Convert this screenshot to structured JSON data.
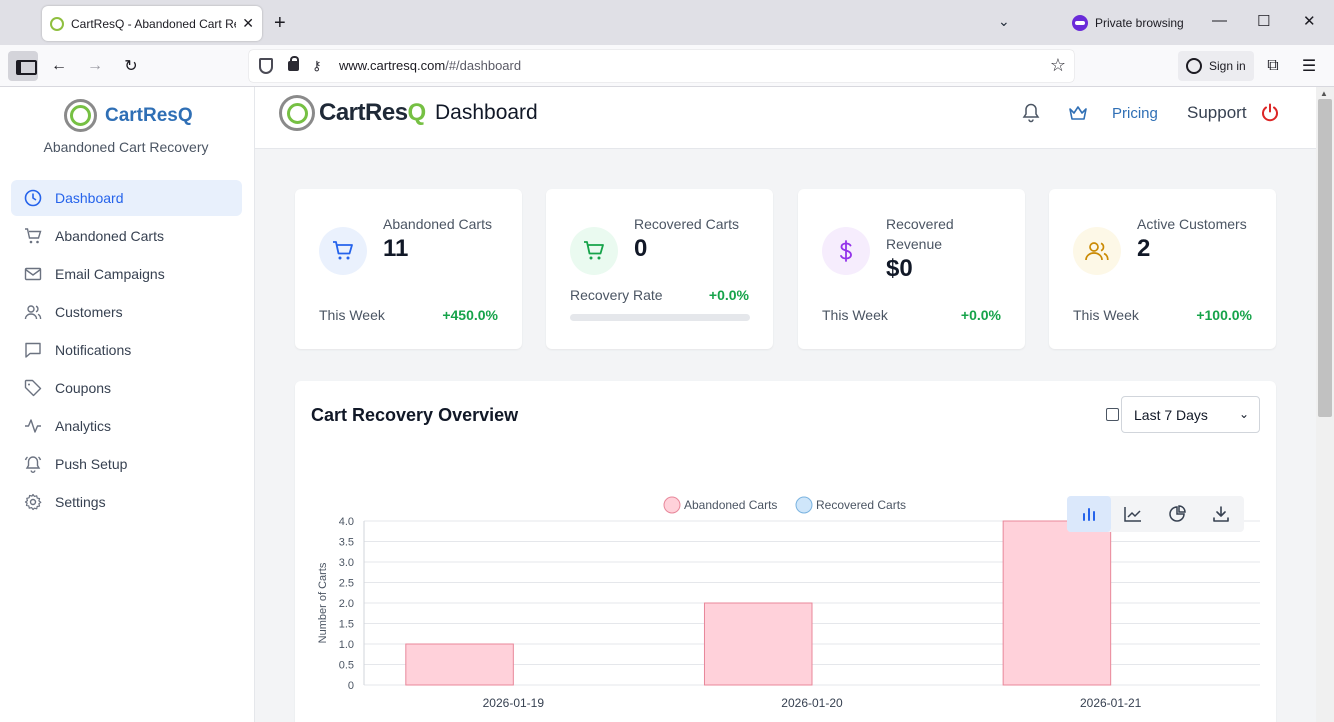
{
  "browser": {
    "tab_title": "CartResQ - Abandoned Cart Rec",
    "new_tab": "+",
    "private_label": "Private browsing",
    "url_host": "www.cartresq.com",
    "url_path": "/#/dashboard",
    "sign_in": "Sign in"
  },
  "sidebar": {
    "brand": "CartResQ",
    "subtitle": "Abandoned Cart Recovery",
    "items": [
      {
        "label": "Dashboard",
        "icon": "clock-icon"
      },
      {
        "label": "Abandoned Carts",
        "icon": "cart-icon"
      },
      {
        "label": "Email Campaigns",
        "icon": "mail-icon"
      },
      {
        "label": "Customers",
        "icon": "users-icon"
      },
      {
        "label": "Notifications",
        "icon": "message-icon"
      },
      {
        "label": "Coupons",
        "icon": "tag-icon"
      },
      {
        "label": "Analytics",
        "icon": "activity-icon"
      },
      {
        "label": "Push Setup",
        "icon": "bell-ring-icon"
      },
      {
        "label": "Settings",
        "icon": "gear-icon"
      }
    ]
  },
  "topbar": {
    "logo_main": "CartRes",
    "logo_accent": "Q",
    "title": "Dashboard",
    "pricing": "Pricing",
    "support": "Support"
  },
  "stats": [
    {
      "label": "Abandoned Carts",
      "value": "11",
      "footer": "This Week",
      "change": "+450.0%",
      "color": "#2563eb",
      "bg": "#eaf1fd"
    },
    {
      "label": "Recovered Carts",
      "value": "0",
      "footer": "Recovery Rate",
      "change": "+0.0%",
      "color": "#16a34a",
      "bg": "#eafaf0",
      "progress": 0
    },
    {
      "label": "Recovered Revenue",
      "value": "$0",
      "footer": "This Week",
      "change": "+0.0%",
      "color": "#9333ea",
      "bg": "#f6edfd"
    },
    {
      "label": "Active Customers",
      "value": "2",
      "footer": "This Week",
      "change": "+100.0%",
      "color": "#ca8a04",
      "bg": "#fdf8e7"
    }
  ],
  "overview": {
    "title": "Cart Recovery Overview",
    "range": "Last 7 Days"
  },
  "chart_data": {
    "type": "bar",
    "categories": [
      "2026-01-19",
      "2026-01-20",
      "2026-01-21"
    ],
    "series": [
      {
        "name": "Abandoned Carts",
        "values": [
          1,
          2,
          4
        ],
        "color": "#ffd1da",
        "border": "#e8879a"
      },
      {
        "name": "Recovered Carts",
        "values": [
          0,
          0,
          0
        ],
        "color": "#cfe6fa",
        "border": "#7ab3e0"
      }
    ],
    "ylabel": "Number of Carts",
    "ylim": [
      0,
      4
    ],
    "yticks": [
      "0",
      "0.5",
      "1.0",
      "1.5",
      "2.0",
      "2.5",
      "3.0",
      "3.5",
      "4.0"
    ],
    "grid": true,
    "legend": "top"
  }
}
